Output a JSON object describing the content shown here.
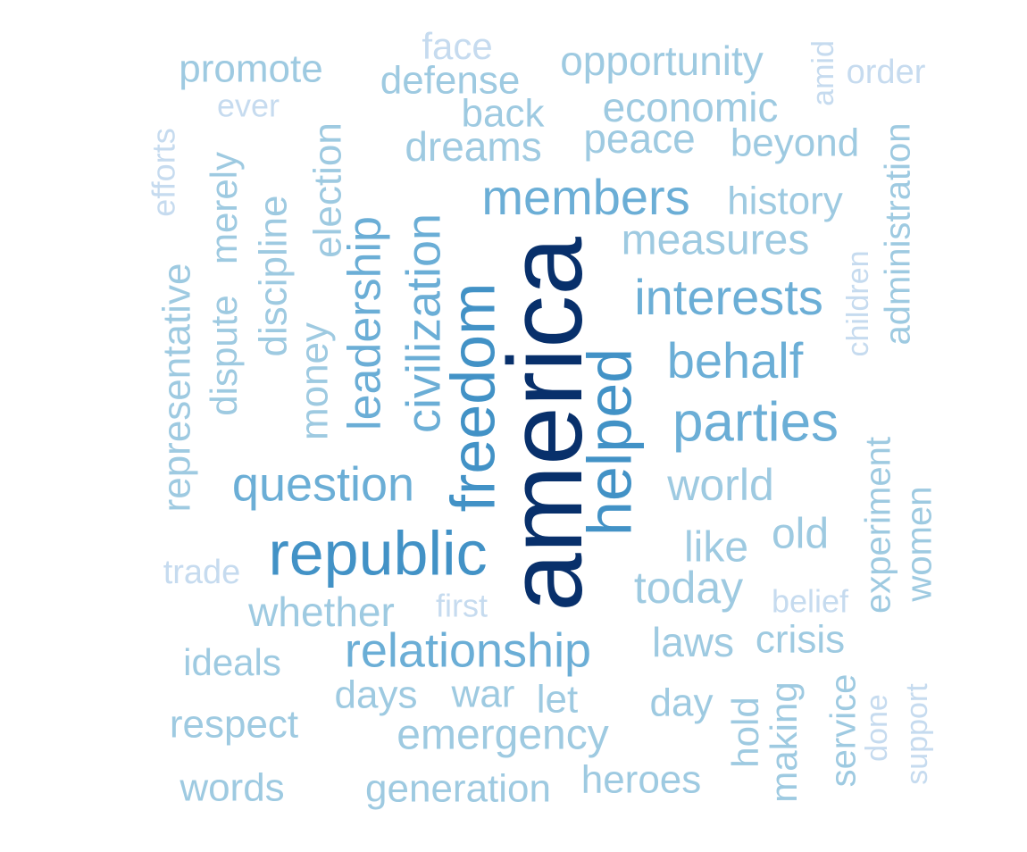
{
  "colors": {
    "dark": "#08306b",
    "blue": "#4292c6",
    "mid": "#6baed6",
    "light": "#9ecae1",
    "pale": "#c6dbef"
  },
  "words": [
    {
      "text": "america",
      "color": "dark"
    },
    {
      "text": "republic",
      "color": "blue"
    },
    {
      "text": "freedom",
      "color": "blue"
    },
    {
      "text": "helped",
      "color": "blue"
    },
    {
      "text": "members",
      "color": "mid"
    },
    {
      "text": "parties",
      "color": "mid"
    },
    {
      "text": "interests",
      "color": "mid"
    },
    {
      "text": "relationship",
      "color": "mid"
    },
    {
      "text": "civilization",
      "color": "mid"
    },
    {
      "text": "leadership",
      "color": "mid"
    },
    {
      "text": "question",
      "color": "mid"
    },
    {
      "text": "behalf",
      "color": "mid"
    },
    {
      "text": "measures",
      "color": "light"
    },
    {
      "text": "economic",
      "color": "light"
    },
    {
      "text": "opportunity",
      "color": "light"
    },
    {
      "text": "peace",
      "color": "light"
    },
    {
      "text": "beyond",
      "color": "light"
    },
    {
      "text": "history",
      "color": "light"
    },
    {
      "text": "dreams",
      "color": "light"
    },
    {
      "text": "defense",
      "color": "light"
    },
    {
      "text": "back",
      "color": "light"
    },
    {
      "text": "promote",
      "color": "light"
    },
    {
      "text": "world",
      "color": "light"
    },
    {
      "text": "today",
      "color": "light"
    },
    {
      "text": "like",
      "color": "light"
    },
    {
      "text": "old",
      "color": "light"
    },
    {
      "text": "whether",
      "color": "light"
    },
    {
      "text": "laws",
      "color": "light"
    },
    {
      "text": "crisis",
      "color": "light"
    },
    {
      "text": "experiment",
      "color": "light"
    },
    {
      "text": "women",
      "color": "light"
    },
    {
      "text": "administration",
      "color": "light"
    },
    {
      "text": "election",
      "color": "light"
    },
    {
      "text": "money",
      "color": "light"
    },
    {
      "text": "discipline",
      "color": "light"
    },
    {
      "text": "dispute",
      "color": "light"
    },
    {
      "text": "merely",
      "color": "light"
    },
    {
      "text": "representative",
      "color": "light"
    },
    {
      "text": "ideals",
      "color": "light"
    },
    {
      "text": "respect",
      "color": "light"
    },
    {
      "text": "words",
      "color": "light"
    },
    {
      "text": "generation",
      "color": "light"
    },
    {
      "text": "heroes",
      "color": "light"
    },
    {
      "text": "emergency",
      "color": "light"
    },
    {
      "text": "days",
      "color": "light"
    },
    {
      "text": "war",
      "color": "light"
    },
    {
      "text": "let",
      "color": "light"
    },
    {
      "text": "day",
      "color": "light"
    },
    {
      "text": "hold",
      "color": "light"
    },
    {
      "text": "making",
      "color": "light"
    },
    {
      "text": "service",
      "color": "light"
    },
    {
      "text": "face",
      "color": "pale"
    },
    {
      "text": "ever",
      "color": "pale"
    },
    {
      "text": "order",
      "color": "pale"
    },
    {
      "text": "amid",
      "color": "pale"
    },
    {
      "text": "efforts",
      "color": "pale"
    },
    {
      "text": "children",
      "color": "pale"
    },
    {
      "text": "trade",
      "color": "pale"
    },
    {
      "text": "first",
      "color": "pale"
    },
    {
      "text": "belief",
      "color": "pale"
    },
    {
      "text": "done",
      "color": "pale"
    },
    {
      "text": "support",
      "color": "pale"
    }
  ]
}
